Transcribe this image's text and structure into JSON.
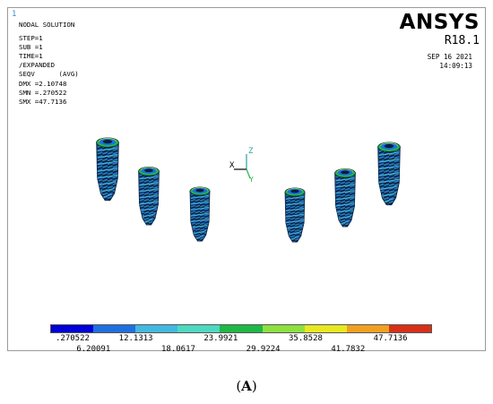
{
  "window_number": "1",
  "solution_info": {
    "line1": "NODAL SOLUTION",
    "line2": "STEP=1",
    "line3": "SUB =1",
    "line4": "TIME=1",
    "line5": "/EXPANDED",
    "line6": "SEQV      (AVG)",
    "line7": "DMX =2.10748",
    "line8": "SMN =.270522",
    "line9": "SMX =47.7136"
  },
  "brand": {
    "logo": "ANSYS",
    "version": "R18.1"
  },
  "timestamp": {
    "date": "SEP 16 2021",
    "time": "14:09:13"
  },
  "triad": {
    "x_label": "X",
    "z_label": "Z",
    "y_label": "Y"
  },
  "legend": {
    "colors": [
      "#0000d8",
      "#1f6fe0",
      "#44b8e0",
      "#4fd8c0",
      "#1fb848",
      "#8ee040",
      "#e8e820",
      "#f0a020",
      "#d83018"
    ],
    "labels_top": [
      ".270522",
      "12.1313",
      "23.9921",
      "35.8528",
      "47.7136"
    ],
    "labels_bottom": [
      "6.20091",
      "18.0617",
      "29.9224",
      "41.7832"
    ]
  },
  "caption": {
    "prefix": "(",
    "letter": "A",
    "suffix": ")"
  }
}
